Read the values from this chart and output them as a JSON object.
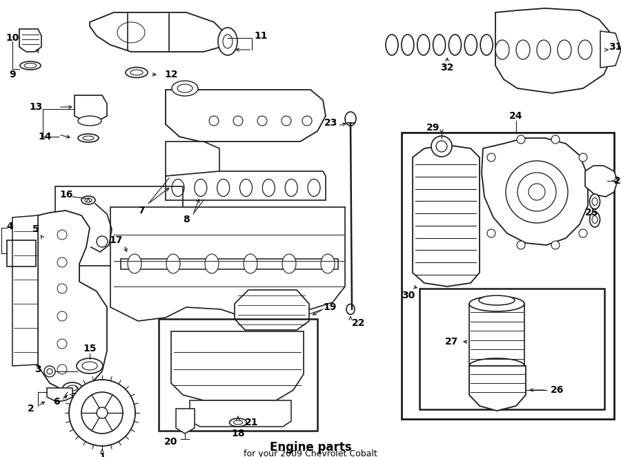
{
  "bg_color": "#ffffff",
  "line_color": "#1a1a1a",
  "title": "Engine parts",
  "subtitle": "for your 2009 Chevrolet Cobalt",
  "fig_width": 9.0,
  "fig_height": 6.62,
  "dpi": 100
}
